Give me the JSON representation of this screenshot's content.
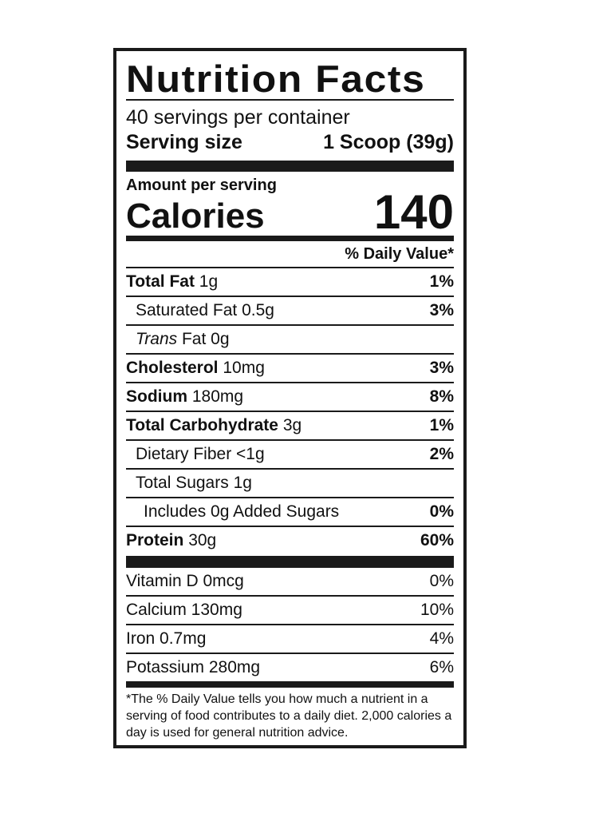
{
  "title": "Nutrition Facts",
  "servings_per_container": "40 servings per container",
  "serving_size": {
    "label": "Serving size",
    "value": "1 Scoop (39g)"
  },
  "amount_per_serving": "Amount per serving",
  "calories": {
    "label": "Calories",
    "value": "140"
  },
  "daily_value_header": "% Daily Value*",
  "nutrients": [
    {
      "name": "Total Fat",
      "amount": "1g",
      "dv": "1%"
    },
    {
      "name": "Saturated Fat",
      "amount": "0.5g",
      "dv": "3%"
    },
    {
      "name": "Trans",
      "name_rest": "Fat",
      "amount": "0g",
      "dv": ""
    },
    {
      "name": "Cholesterol",
      "amount": "10mg",
      "dv": "3%"
    },
    {
      "name": "Sodium",
      "amount": "180mg",
      "dv": "8%"
    },
    {
      "name": "Total Carbohydrate",
      "amount": "3g",
      "dv": "1%"
    },
    {
      "name": "Dietary Fiber",
      "amount": "<1g",
      "dv": "2%"
    },
    {
      "name": "Total Sugars",
      "amount": "1g",
      "dv": ""
    },
    {
      "name": "Includes 0g Added Sugars",
      "amount": "",
      "dv": "0%"
    },
    {
      "name": "Protein",
      "amount": "30g",
      "dv": "60%"
    }
  ],
  "vitamins": [
    {
      "label": "Vitamin D 0mcg",
      "dv": "0%"
    },
    {
      "label": "Calcium 130mg",
      "dv": "10%"
    },
    {
      "label": "Iron 0.7mg",
      "dv": "4%"
    },
    {
      "label": "Potassium 280mg",
      "dv": "6%"
    }
  ],
  "footnote": "*The % Daily Value tells you how much a nutrient in a serving of food contributes to a daily diet. 2,000 calories a day is used for general nutrition advice."
}
